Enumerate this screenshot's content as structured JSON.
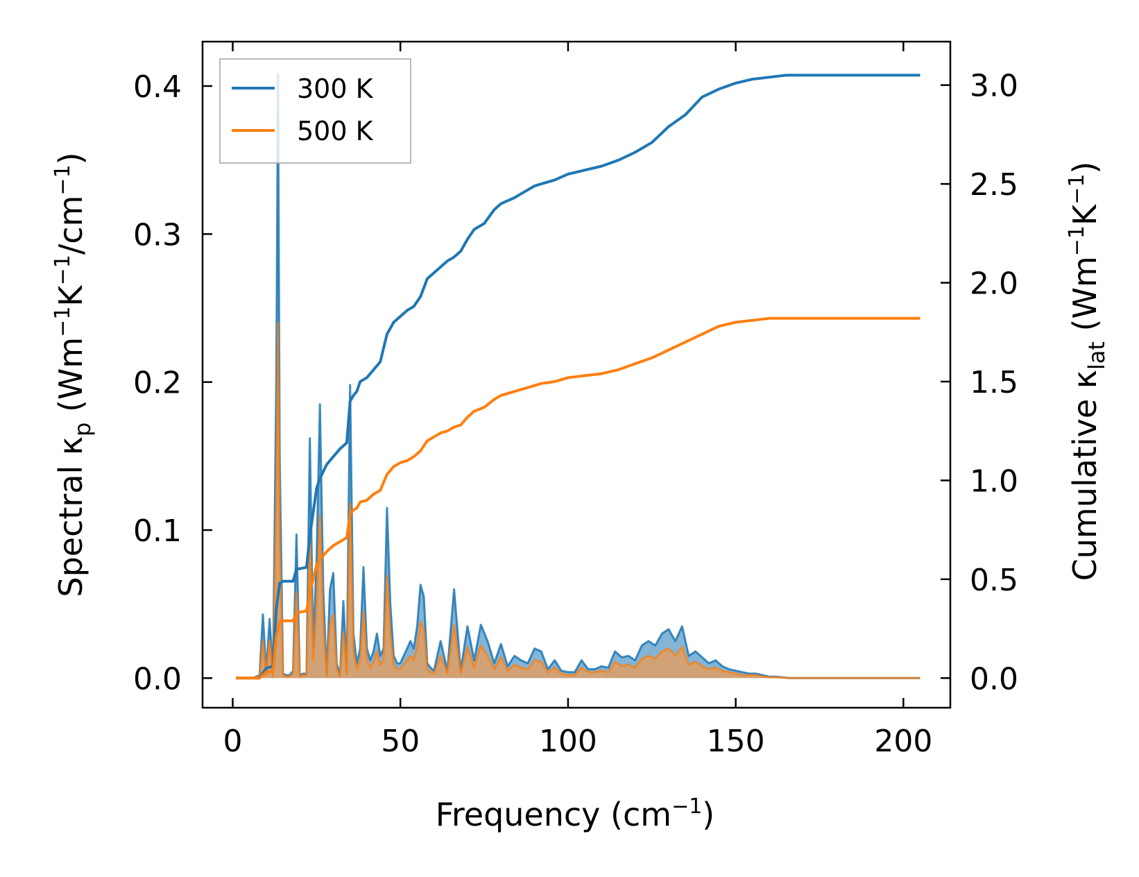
{
  "chart_data": {
    "type": "line",
    "xlabel": {
      "main": "Frequency (cm",
      "sup": "−1",
      "end": ")"
    },
    "ylabel_left": {
      "a": "Spectral κ",
      "a_sub": "p",
      "b": " (Wm",
      "b_sup": "−1",
      "c": "K",
      "c_sup": "−1",
      "d": "/cm",
      "d_sup": "−1",
      "e": ")"
    },
    "ylabel_right": {
      "a": "Cumulative κ",
      "a_sub": "lat",
      "b": " (Wm",
      "b_sup": "−1",
      "c": "K",
      "c_sup": "−1",
      "d": ")"
    },
    "xlim": [
      -9,
      214
    ],
    "ylim_left": [
      -0.02,
      0.43
    ],
    "ylim_right": [
      -0.15,
      3.22
    ],
    "xticks": [
      0,
      50,
      100,
      150,
      200
    ],
    "xtick_labels": [
      "0",
      "50",
      "100",
      "150",
      "200"
    ],
    "yticks_left": [
      0.0,
      0.1,
      0.2,
      0.3,
      0.4
    ],
    "ytick_labels_left": [
      "0.0",
      "0.1",
      "0.2",
      "0.3",
      "0.4"
    ],
    "yticks_right": [
      0.0,
      0.5,
      1.0,
      1.5,
      2.0,
      2.5,
      3.0
    ],
    "ytick_labels_right": [
      "0.0",
      "0.5",
      "1.0",
      "1.5",
      "2.0",
      "2.5",
      "3.0"
    ],
    "legend": {
      "position": "upper-left",
      "entries": [
        "300 K",
        "500 K"
      ]
    },
    "colors": {
      "300 K": "#1f77b4",
      "500 K": "#ff7f0e",
      "fill_300": "#1f77b4",
      "fill_500": "#d8a06b"
    },
    "spectral": {
      "x": [
        1,
        4,
        6,
        8,
        9,
        10,
        11,
        12,
        13,
        13.5,
        14,
        15,
        16,
        17,
        18,
        19,
        20,
        21,
        22,
        23,
        24,
        25,
        26,
        27,
        28,
        29,
        30,
        31,
        32,
        33,
        34,
        35,
        36,
        37,
        38,
        39,
        40,
        41,
        42,
        43,
        44,
        45,
        46,
        47,
        48,
        49,
        50,
        51,
        52,
        53,
        54,
        55,
        56,
        57,
        58,
        59,
        60,
        62,
        64,
        66,
        68,
        70,
        72,
        74,
        76,
        78,
        80,
        82,
        84,
        86,
        88,
        90,
        92,
        94,
        96,
        98,
        100,
        102,
        104,
        106,
        108,
        110,
        112,
        114,
        116,
        118,
        120,
        122,
        124,
        126,
        128,
        130,
        132,
        134,
        136,
        138,
        140,
        142,
        144,
        146,
        148,
        150,
        152,
        154,
        156,
        158,
        160,
        162,
        164,
        166,
        168,
        170,
        175,
        180,
        190,
        200,
        205
      ],
      "series": [
        {
          "name": "300 K",
          "values": [
            0,
            0,
            0,
            0.002,
            0.043,
            0.004,
            0.04,
            0.002,
            0.2,
            0.408,
            0.15,
            0.003,
            0.002,
            0.002,
            0.005,
            0.097,
            0.002,
            0.003,
            0.003,
            0.162,
            0.02,
            0.08,
            0.185,
            0.06,
            0.002,
            0.06,
            0.071,
            0.01,
            0.002,
            0.052,
            0.005,
            0.198,
            0.03,
            0.01,
            0.02,
            0.075,
            0.02,
            0.012,
            0.018,
            0.03,
            0.015,
            0.02,
            0.115,
            0.05,
            0.015,
            0.01,
            0.01,
            0.015,
            0.02,
            0.025,
            0.02,
            0.035,
            0.063,
            0.055,
            0.01,
            0.007,
            0.005,
            0.025,
            0.005,
            0.06,
            0.005,
            0.035,
            0.012,
            0.036,
            0.025,
            0.01,
            0.023,
            0.008,
            0.015,
            0.012,
            0.01,
            0.02,
            0.018,
            0.006,
            0.012,
            0.005,
            0.004,
            0.004,
            0.012,
            0.006,
            0.006,
            0.008,
            0.007,
            0.018,
            0.014,
            0.015,
            0.012,
            0.022,
            0.025,
            0.022,
            0.03,
            0.033,
            0.025,
            0.035,
            0.015,
            0.018,
            0.014,
            0.01,
            0.012,
            0.008,
            0.006,
            0.005,
            0.004,
            0.003,
            0.003,
            0.002,
            0.001,
            0.001,
            0.0005,
            0,
            0,
            0,
            0,
            0,
            0,
            0,
            0
          ]
        },
        {
          "name": "500 K",
          "values": [
            0,
            0,
            0,
            0.001,
            0.025,
            0.002,
            0.025,
            0.001,
            0.12,
            0.24,
            0.09,
            0.002,
            0.001,
            0.001,
            0.003,
            0.058,
            0.001,
            0.002,
            0.002,
            0.097,
            0.012,
            0.048,
            0.11,
            0.036,
            0.001,
            0.036,
            0.043,
            0.006,
            0.001,
            0.031,
            0.003,
            0.118,
            0.018,
            0.006,
            0.012,
            0.045,
            0.012,
            0.007,
            0.011,
            0.018,
            0.009,
            0.012,
            0.069,
            0.03,
            0.009,
            0.006,
            0.006,
            0.009,
            0.012,
            0.015,
            0.012,
            0.021,
            0.038,
            0.033,
            0.006,
            0.004,
            0.003,
            0.015,
            0.003,
            0.036,
            0.003,
            0.021,
            0.007,
            0.022,
            0.015,
            0.006,
            0.014,
            0.005,
            0.009,
            0.007,
            0.006,
            0.012,
            0.011,
            0.004,
            0.007,
            0.003,
            0.002,
            0.002,
            0.007,
            0.004,
            0.004,
            0.005,
            0.004,
            0.011,
            0.008,
            0.009,
            0.007,
            0.013,
            0.015,
            0.013,
            0.018,
            0.02,
            0.015,
            0.021,
            0.009,
            0.011,
            0.008,
            0.006,
            0.007,
            0.005,
            0.004,
            0.003,
            0.002,
            0.002,
            0.002,
            0.001,
            0.0006,
            0.0006,
            0.0003,
            0,
            0,
            0,
            0,
            0,
            0,
            0,
            0
          ]
        }
      ]
    },
    "cumulative": {
      "x": [
        1,
        8,
        10,
        12,
        13,
        14,
        15,
        18,
        19,
        22,
        23,
        25,
        26,
        28,
        30,
        32,
        34,
        35,
        36,
        37,
        38,
        40,
        42,
        44,
        46,
        47,
        48,
        50,
        52,
        54,
        56,
        58,
        60,
        62,
        64,
        66,
        68,
        70,
        72,
        75,
        78,
        80,
        84,
        86,
        90,
        92,
        96,
        100,
        105,
        110,
        115,
        120,
        125,
        130,
        135,
        140,
        145,
        150,
        155,
        160,
        165,
        170,
        205
      ],
      "series": [
        {
          "name": "300 K",
          "values": [
            0,
            0,
            0.05,
            0.06,
            0.35,
            0.48,
            0.49,
            0.49,
            0.55,
            0.56,
            0.72,
            0.96,
            1.01,
            1.08,
            1.12,
            1.16,
            1.19,
            1.4,
            1.43,
            1.45,
            1.5,
            1.52,
            1.56,
            1.6,
            1.74,
            1.77,
            1.8,
            1.83,
            1.86,
            1.88,
            1.93,
            2.02,
            2.05,
            2.08,
            2.11,
            2.13,
            2.16,
            2.22,
            2.27,
            2.3,
            2.37,
            2.4,
            2.43,
            2.45,
            2.49,
            2.5,
            2.52,
            2.55,
            2.57,
            2.59,
            2.62,
            2.66,
            2.71,
            2.79,
            2.85,
            2.94,
            2.98,
            3.01,
            3.03,
            3.04,
            3.05,
            3.05,
            3.05
          ]
        },
        {
          "name": "500 K",
          "values": [
            0,
            0,
            0.03,
            0.035,
            0.21,
            0.285,
            0.29,
            0.29,
            0.33,
            0.34,
            0.43,
            0.57,
            0.6,
            0.64,
            0.67,
            0.69,
            0.71,
            0.83,
            0.85,
            0.86,
            0.89,
            0.9,
            0.93,
            0.95,
            1.03,
            1.05,
            1.07,
            1.09,
            1.1,
            1.12,
            1.15,
            1.2,
            1.22,
            1.24,
            1.25,
            1.27,
            1.28,
            1.32,
            1.35,
            1.37,
            1.41,
            1.43,
            1.45,
            1.46,
            1.48,
            1.49,
            1.5,
            1.52,
            1.53,
            1.54,
            1.56,
            1.59,
            1.62,
            1.66,
            1.7,
            1.74,
            1.78,
            1.8,
            1.81,
            1.82,
            1.82,
            1.82,
            1.82
          ]
        }
      ]
    }
  }
}
